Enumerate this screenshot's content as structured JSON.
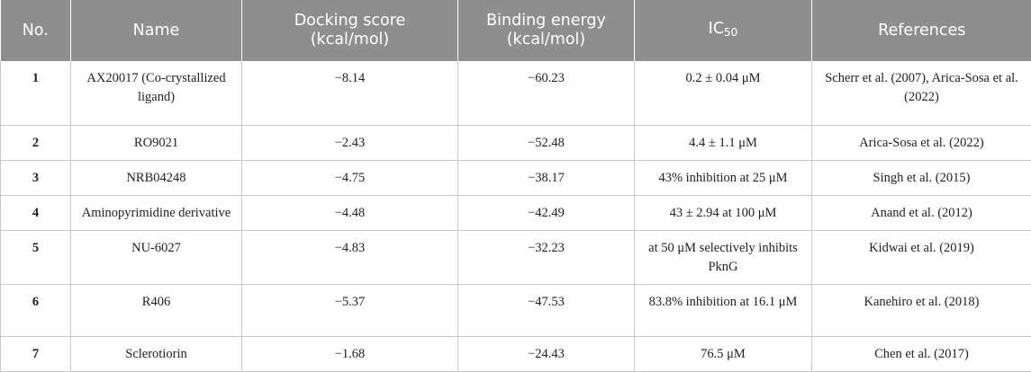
{
  "table": {
    "headers": {
      "no": "No.",
      "name": "Name",
      "docking_line1": "Docking score",
      "docking_line2": "(kcal/mol)",
      "binding_line1": "Binding energy",
      "binding_line2": "(kcal/mol)",
      "ic_base": "IC",
      "ic_sub": "50",
      "references": "References"
    },
    "rows": [
      {
        "no": "1",
        "name": "AX20017 (Co-crystallized ligand)",
        "docking": "−8.14",
        "binding": "−60.23",
        "ic50": "0.2 ± 0.04 μM",
        "references": "Scherr et al. (2007), Arica-Sosa et al. (2022)"
      },
      {
        "no": "2",
        "name": "RO9021",
        "docking": "−2.43",
        "binding": "−52.48",
        "ic50": "4.4 ± 1.1 μM",
        "references": "Arica-Sosa et al. (2022)"
      },
      {
        "no": "3",
        "name": "NRB04248",
        "docking": "−4.75",
        "binding": "−38.17",
        "ic50": "43% inhibition at 25 μM",
        "references": "Singh et al. (2015)"
      },
      {
        "no": "4",
        "name": "Aminopyrimidine derivative",
        "docking": "−4.48",
        "binding": "−42.49",
        "ic50": "43 ± 2.94 at 100 μM",
        "references": "Anand et al. (2012)"
      },
      {
        "no": "5",
        "name": "NU-6027",
        "docking": "−4.83",
        "binding": "−32.23",
        "ic50": "at 50 μM selectively inhibits PknG",
        "references": "Kidwai et al. (2019)"
      },
      {
        "no": "6",
        "name": "R406",
        "docking": "−5.37",
        "binding": "−47.53",
        "ic50": "83.8% inhibition at 16.1 μM",
        "references": "Kanehiro et al. (2018)"
      },
      {
        "no": "7",
        "name": "Sclerotiorin",
        "docking": "−1.68",
        "binding": "−24.43",
        "ic50": "76.5 μM",
        "references": "Chen et al. (2017)"
      }
    ]
  }
}
